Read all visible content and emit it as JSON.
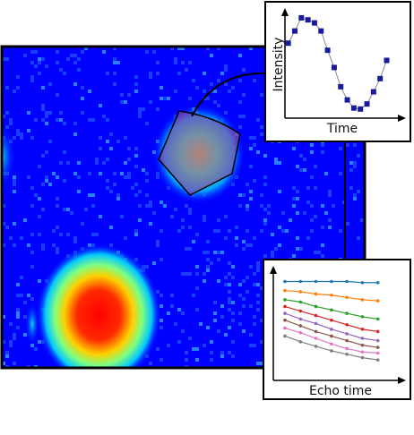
{
  "chart_data": [
    {
      "type": "scatter",
      "y_label": "Intensity",
      "x_label": "Time",
      "x": [
        0,
        1,
        2,
        3,
        4,
        5,
        6,
        7,
        8,
        9,
        10,
        11,
        12,
        13,
        14,
        15
      ],
      "series": [
        {
          "color": "#1a1a9c",
          "values": [
            0.7,
            0.82,
            0.95,
            0.93,
            0.9,
            0.82,
            0.63,
            0.46,
            0.27,
            0.14,
            0.06,
            0.05,
            0.1,
            0.22,
            0.35,
            0.53
          ]
        }
      ],
      "xlim": [
        -0.5,
        17.8
      ],
      "ylim": [
        -0.04,
        1.02
      ]
    },
    {
      "type": "line",
      "x_label": "Echo time",
      "x": [
        0,
        1,
        2,
        3,
        4,
        5,
        6
      ],
      "series": [
        {
          "color": "#1f77b4",
          "values": [
            0.87,
            0.87,
            0.87,
            0.87,
            0.87,
            0.86,
            0.86
          ]
        },
        {
          "color": "#ff7f0e",
          "values": [
            0.79,
            0.78,
            0.76,
            0.75,
            0.73,
            0.71,
            0.7
          ]
        },
        {
          "color": "#2ca02c",
          "values": [
            0.71,
            0.69,
            0.65,
            0.62,
            0.59,
            0.56,
            0.54
          ]
        },
        {
          "color": "#d62728",
          "values": [
            0.65,
            0.61,
            0.57,
            0.53,
            0.49,
            0.45,
            0.43
          ]
        },
        {
          "color": "#9467bd",
          "values": [
            0.59,
            0.54,
            0.5,
            0.45,
            0.41,
            0.37,
            0.35
          ]
        },
        {
          "color": "#8c564b",
          "values": [
            0.53,
            0.48,
            0.43,
            0.39,
            0.35,
            0.31,
            0.29
          ]
        },
        {
          "color": "#e377c2",
          "values": [
            0.46,
            0.42,
            0.37,
            0.32,
            0.28,
            0.25,
            0.24
          ]
        },
        {
          "color": "#7f7f7f",
          "values": [
            0.39,
            0.34,
            0.3,
            0.26,
            0.23,
            0.2,
            0.18
          ]
        }
      ],
      "xlim": [
        -0.75,
        7.75
      ],
      "ylim": [
        0,
        1
      ]
    }
  ]
}
